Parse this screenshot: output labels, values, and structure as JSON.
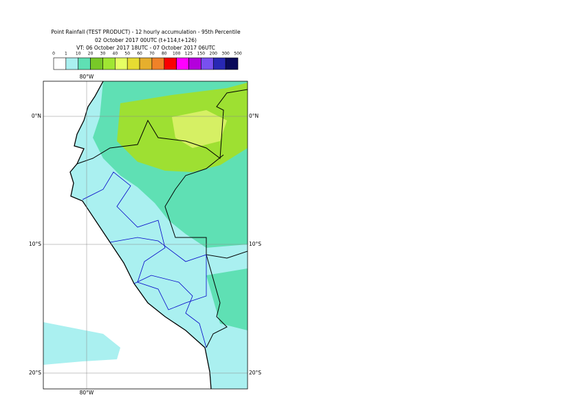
{
  "header": {
    "title": "Point Rainfall (TEST PRODUCT) - 12 hourly accumulation - 95th Percentile",
    "subtitle": "02 October 2017 00UTC (t+114,t+126)",
    "valid_time": "VT: 06 October 2017 18UTC - 07 October 2017 06UTC"
  },
  "legend": {
    "thresholds": [
      0,
      1,
      10,
      20,
      30,
      40,
      50,
      60,
      70,
      80,
      100,
      125,
      150,
      200,
      300,
      500
    ],
    "colors": [
      "#ffffff",
      "#aaf0f0",
      "#5fe0b4",
      "#78c828",
      "#a0e632",
      "#e6ff64",
      "#e6dc32",
      "#e6af2d",
      "#f08228",
      "#fa0000",
      "#ff00ff",
      "#b400dc",
      "#7850f0",
      "#2828b4",
      "#0a0a5a"
    ]
  },
  "map": {
    "lat_labels": [
      "0°N",
      "10°S",
      "20°S"
    ],
    "lon_labels": [
      "80°W"
    ]
  }
}
